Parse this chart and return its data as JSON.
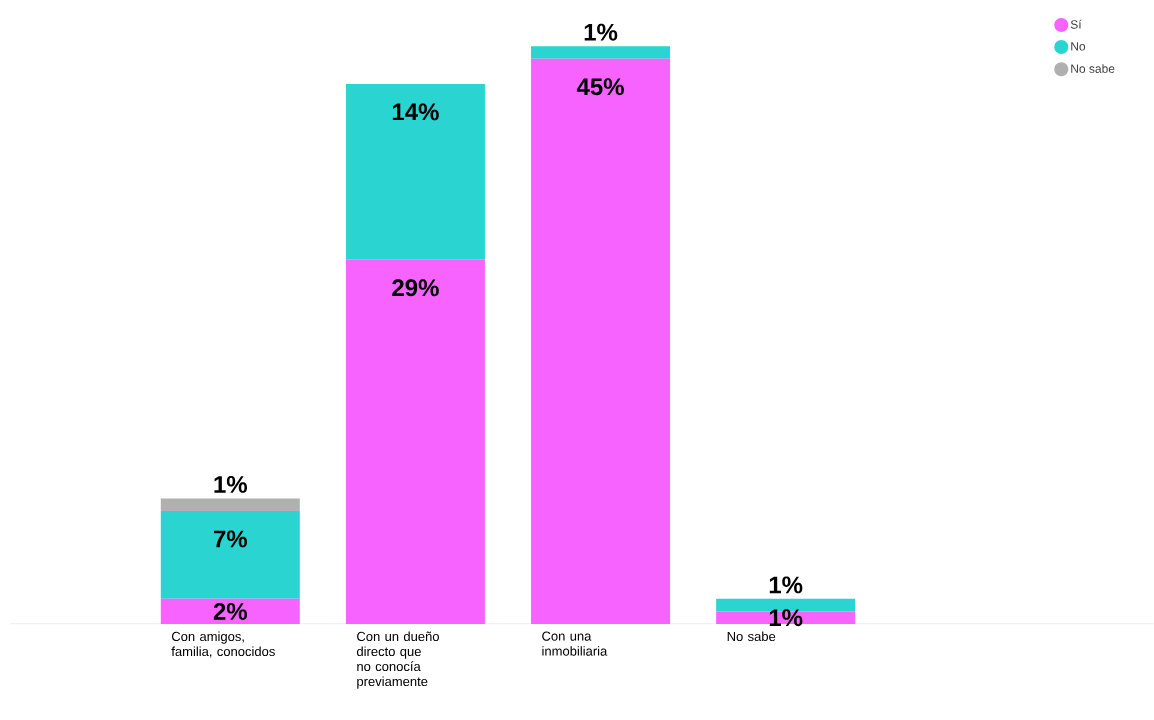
{
  "chart_data": {
    "type": "bar",
    "stacked": true,
    "legend": "top right",
    "marker": "circle",
    "categories": [
      "Con amigos, familia, conocidos",
      "Con un dueño directo que no conocía previamente",
      "Con una inmobiliaria",
      "No sabe"
    ],
    "series": [
      {
        "name": "Sí",
        "color": "#f763ff",
        "values": [
          2,
          29,
          45,
          1
        ],
        "value_labels": [
          "2%",
          "29%",
          "45%",
          "1%"
        ]
      },
      {
        "name": "No",
        "color": "#2ad4d0",
        "values": [
          7,
          14,
          1,
          1
        ],
        "value_labels": [
          "7%",
          "14%",
          "1%",
          "1%"
        ]
      },
      {
        "name": "No sabe",
        "color": "#b0b0b0",
        "values": [
          1,
          null,
          null,
          null
        ],
        "value_labels": [
          "1%",
          null,
          null,
          null
        ]
      }
    ]
  }
}
